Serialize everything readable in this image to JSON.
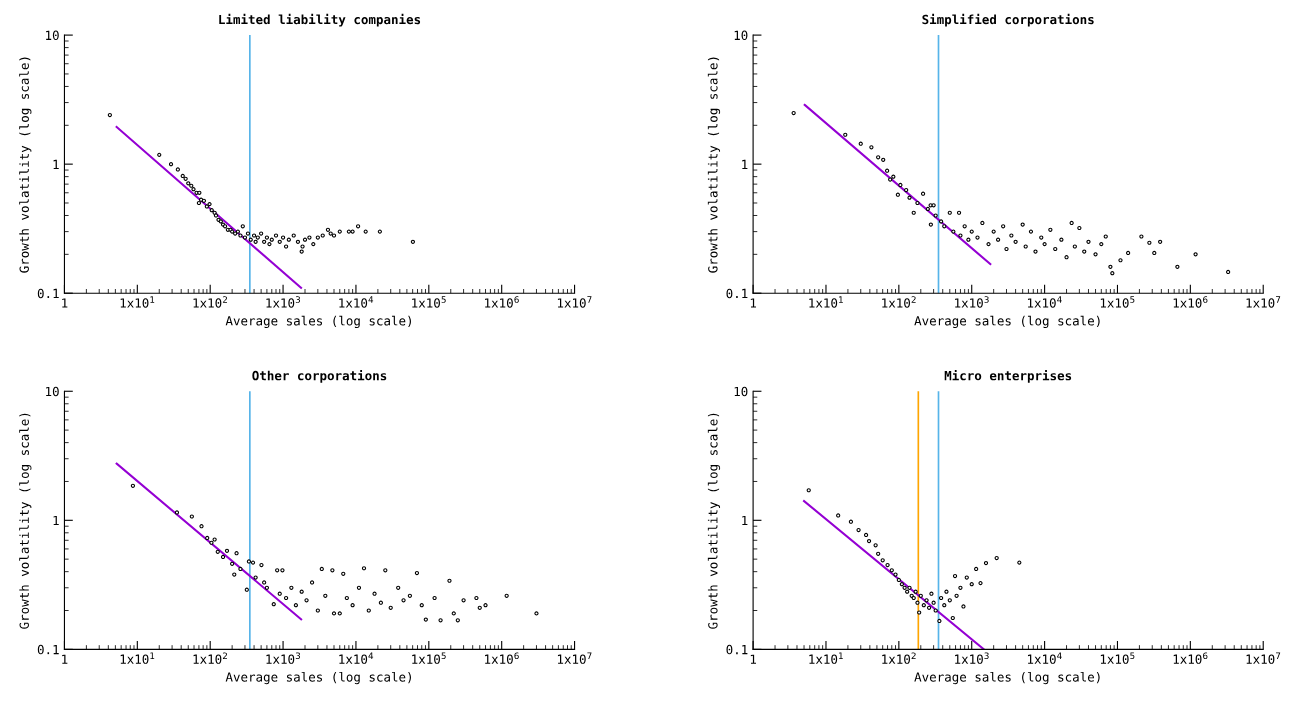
{
  "chart_data": [
    {
      "type": "scatter",
      "title": "Limited liability companies",
      "xlabel": "Average sales (log scale)",
      "ylabel": "Growth volatility (log scale)",
      "log": "xy",
      "grid": false,
      "xlim": [
        1,
        10000000
      ],
      "ylim": [
        0.1,
        10
      ],
      "xticks": [
        1,
        {
          "value": 10,
          "label": "1x10$^{1}$"
        },
        {
          "value": 100,
          "label": "1x10$^{2}$"
        },
        {
          "value": 1000,
          "label": "1x10$^{3}$"
        },
        {
          "value": 10000,
          "label": "1x10$^{4}$"
        },
        {
          "value": 100000,
          "label": "1x10$^{5}$"
        },
        {
          "value": 1000000,
          "label": "1x10$^{6}$"
        },
        {
          "value": 10000000,
          "label": "1x10$^{7}$"
        }
      ],
      "yticks": [
        0.1,
        1,
        10
      ],
      "ref_lines": [
        {
          "axis": "x",
          "value": 350,
          "color": "#56b4e9"
        }
      ],
      "series": [
        {
          "marker": "circle",
          "color": "#000000",
          "x": [
            4.2,
            20,
            29,
            36,
            42,
            46,
            50,
            55,
            59,
            65,
            71,
            70,
            75,
            82,
            90,
            98,
            105,
            115,
            120,
            130,
            140,
            150,
            160,
            175,
            190,
            200,
            220,
            240,
            260,
            280,
            300,
            330,
            360,
            400,
            420,
            450,
            500,
            550,
            600,
            650,
            700,
            800,
            900,
            1000,
            1100,
            1200,
            1400,
            1600,
            1800,
            1850,
            2000,
            2300,
            2600,
            3000,
            3500,
            4130,
            4500,
            5000,
            6000,
            8000,
            9000,
            10700,
            13600,
            21300,
            60500
          ],
          "values": [
            2.4,
            1.18,
            1.0,
            0.91,
            0.81,
            0.77,
            0.71,
            0.68,
            0.64,
            0.6,
            0.6,
            0.5,
            0.53,
            0.52,
            0.47,
            0.49,
            0.44,
            0.42,
            0.4,
            0.37,
            0.36,
            0.34,
            0.33,
            0.31,
            0.31,
            0.3,
            0.29,
            0.3,
            0.28,
            0.33,
            0.27,
            0.29,
            0.26,
            0.28,
            0.25,
            0.27,
            0.29,
            0.25,
            0.27,
            0.24,
            0.26,
            0.28,
            0.25,
            0.27,
            0.23,
            0.26,
            0.28,
            0.25,
            0.21,
            0.23,
            0.26,
            0.27,
            0.24,
            0.27,
            0.28,
            0.31,
            0.29,
            0.28,
            0.3,
            0.3,
            0.3,
            0.33,
            0.3,
            0.3,
            0.25
          ]
        },
        {
          "type": "line",
          "color": "#9400d3",
          "line_style": "solid",
          "x": [
            5.2,
            1766
          ],
          "values": [
            1.94,
            0.11
          ]
        }
      ]
    },
    {
      "type": "scatter",
      "title": "Simplified corporations",
      "xlabel": "Average sales (log scale)",
      "ylabel": "Growth volatility (log scale)",
      "log": "xy",
      "grid": false,
      "xlim": [
        1,
        10000000
      ],
      "ylim": [
        0.1,
        10
      ],
      "xticks": [
        1,
        {
          "value": 10,
          "label": "1x10$^{1}$"
        },
        {
          "value": 100,
          "label": "1x10$^{2}$"
        },
        {
          "value": 1000,
          "label": "1x10$^{3}$"
        },
        {
          "value": 10000,
          "label": "1x10$^{4}$"
        },
        {
          "value": 100000,
          "label": "1x10$^{5}$"
        },
        {
          "value": 1000000,
          "label": "1x10$^{6}$"
        },
        {
          "value": 10000000,
          "label": "1x10$^{7}$"
        }
      ],
      "yticks": [
        0.1,
        1,
        10
      ],
      "ref_lines": [
        {
          "axis": "x",
          "value": 350,
          "color": "#56b4e9"
        }
      ],
      "series": [
        {
          "marker": "circle",
          "color": "#000000",
          "x": [
            3.6,
            18.4,
            30,
            42,
            52,
            61,
            69,
            76,
            84,
            97,
            105,
            126,
            140,
            160,
            180,
            215,
            250,
            273,
            275,
            300,
            320,
            380,
            420,
            500,
            560,
            670,
            700,
            800,
            900,
            1000,
            1200,
            1400,
            1700,
            2000,
            2300,
            2700,
            3000,
            3500,
            4000,
            5000,
            5500,
            6500,
            7500,
            9000,
            10000,
            12000,
            14000,
            17000,
            20000,
            23500,
            26000,
            30000,
            35000,
            40000,
            50000,
            60000,
            69000,
            80000,
            85000,
            110000,
            140000,
            213000,
            274000,
            320000,
            385000,
            664000,
            1180000,
            3300000
          ],
          "values": [
            2.49,
            1.69,
            1.44,
            1.35,
            1.13,
            1.08,
            0.89,
            0.76,
            0.8,
            0.58,
            0.69,
            0.63,
            0.55,
            0.42,
            0.5,
            0.59,
            0.45,
            0.48,
            0.34,
            0.48,
            0.4,
            0.36,
            0.33,
            0.42,
            0.3,
            0.42,
            0.28,
            0.33,
            0.26,
            0.3,
            0.27,
            0.35,
            0.24,
            0.3,
            0.26,
            0.33,
            0.22,
            0.28,
            0.25,
            0.34,
            0.23,
            0.3,
            0.21,
            0.27,
            0.24,
            0.31,
            0.22,
            0.26,
            0.19,
            0.35,
            0.23,
            0.32,
            0.21,
            0.25,
            0.2,
            0.24,
            0.275,
            0.16,
            0.143,
            0.18,
            0.205,
            0.275,
            0.246,
            0.205,
            0.25,
            0.16,
            0.2,
            0.146
          ]
        },
        {
          "type": "line",
          "color": "#9400d3",
          "line_style": "solid",
          "x": [
            5.1,
            1800
          ],
          "values": [
            2.88,
            0.168
          ]
        }
      ]
    },
    {
      "type": "scatter",
      "title": "Other corporations",
      "xlabel": "Average sales (log scale)",
      "ylabel": "Growth volatility (log scale)",
      "log": "xy",
      "grid": false,
      "xlim": [
        1,
        10000000
      ],
      "ylim": [
        0.1,
        10
      ],
      "xticks": [
        1,
        {
          "value": 10,
          "label": "1x10$^{1}$"
        },
        {
          "value": 100,
          "label": "1x10$^{2}$"
        },
        {
          "value": 1000,
          "label": "1x10$^{3}$"
        },
        {
          "value": 10000,
          "label": "1x10$^{4}$"
        },
        {
          "value": 100000,
          "label": "1x10$^{5}$"
        },
        {
          "value": 1000000,
          "label": "1x10$^{6}$"
        },
        {
          "value": 10000000,
          "label": "1x10$^{7}$"
        }
      ],
      "yticks": [
        0.1,
        1,
        10
      ],
      "ref_lines": [
        {
          "axis": "x",
          "value": 350,
          "color": "#56b4e9"
        }
      ],
      "series": [
        {
          "marker": "circle",
          "color": "#000000",
          "x": [
            8.7,
            35,
            56,
            76,
            91,
            104,
            115,
            127,
            150,
            170,
            200,
            214,
            230,
            260,
            318,
            340,
            387,
            420,
            505,
            550,
            600,
            745,
            830,
            900,
            980,
            1100,
            1300,
            1500,
            1800,
            2100,
            2500,
            3000,
            3400,
            3800,
            4750,
            5000,
            6000,
            6700,
            7500,
            9000,
            11000,
            12900,
            15000,
            18000,
            22000,
            25300,
            30000,
            38000,
            45000,
            55000,
            68700,
            80000,
            91000,
            120000,
            145000,
            192000,
            220000,
            250000,
            300000,
            450000,
            500000,
            600000,
            1170000,
            3000000
          ],
          "values": [
            1.85,
            1.15,
            1.07,
            0.9,
            0.73,
            0.67,
            0.71,
            0.57,
            0.52,
            0.58,
            0.46,
            0.38,
            0.556,
            0.42,
            0.29,
            0.48,
            0.47,
            0.36,
            0.45,
            0.33,
            0.3,
            0.224,
            0.41,
            0.27,
            0.41,
            0.25,
            0.3,
            0.22,
            0.28,
            0.24,
            0.33,
            0.2,
            0.42,
            0.26,
            0.41,
            0.19,
            0.19,
            0.385,
            0.25,
            0.22,
            0.3,
            0.425,
            0.2,
            0.27,
            0.23,
            0.41,
            0.21,
            0.3,
            0.24,
            0.26,
            0.39,
            0.22,
            0.17,
            0.25,
            0.168,
            0.34,
            0.19,
            0.168,
            0.24,
            0.25,
            0.21,
            0.22,
            0.26,
            0.19
          ]
        },
        {
          "type": "line",
          "color": "#9400d3",
          "line_style": "solid",
          "x": [
            5.2,
            1770
          ],
          "values": [
            2.75,
            0.171
          ]
        }
      ]
    },
    {
      "type": "scatter",
      "title": "Micro enterprises",
      "xlabel": "Average sales (log scale)",
      "ylabel": "Growth volatility (log scale)",
      "log": "xy",
      "grid": false,
      "xlim": [
        1,
        10000000
      ],
      "ylim": [
        0.1,
        10
      ],
      "xticks": [
        1,
        {
          "value": 10,
          "label": "1x10$^{1}$"
        },
        {
          "value": 100,
          "label": "1x10$^{2}$"
        },
        {
          "value": 1000,
          "label": "1x10$^{3}$"
        },
        {
          "value": 10000,
          "label": "1x10$^{4}$"
        },
        {
          "value": 100000,
          "label": "1x10$^{5}$"
        },
        {
          "value": 1000000,
          "label": "1x10$^{6}$"
        },
        {
          "value": 10000000,
          "label": "1x10$^{7}$"
        }
      ],
      "yticks": [
        0.1,
        1,
        10
      ],
      "ref_lines": [
        {
          "axis": "x",
          "value": 185,
          "color": "#ffa500"
        },
        {
          "axis": "x",
          "value": 350,
          "color": "#56b4e9"
        }
      ],
      "series": [
        {
          "marker": "circle",
          "color": "#000000",
          "x": [
            5.8,
            14.7,
            22,
            28,
            35.5,
            39,
            48,
            52,
            60,
            70,
            80,
            90,
            100,
            110,
            120,
            130,
            140,
            150,
            160,
            170,
            180,
            190,
            200,
            220,
            240,
            260,
            280,
            300,
            320,
            360,
            380,
            420,
            450,
            500,
            550,
            590,
            620,
            700,
            770,
            855,
            1000,
            1150,
            1320,
            1570,
            2200,
            4500
          ],
          "values": [
            1.71,
            1.09,
            0.975,
            0.84,
            0.77,
            0.69,
            0.64,
            0.55,
            0.49,
            0.45,
            0.41,
            0.38,
            0.345,
            0.32,
            0.3,
            0.28,
            0.3,
            0.26,
            0.25,
            0.28,
            0.23,
            0.193,
            0.26,
            0.22,
            0.24,
            0.21,
            0.27,
            0.23,
            0.2,
            0.166,
            0.25,
            0.22,
            0.28,
            0.24,
            0.175,
            0.37,
            0.26,
            0.3,
            0.215,
            0.36,
            0.32,
            0.42,
            0.326,
            0.466,
            0.51,
            0.47
          ]
        },
        {
          "type": "line",
          "color": "#9400d3",
          "line_style": "solid",
          "x": [
            5.0,
            1470
          ],
          "values": [
            1.41,
            0.1
          ]
        }
      ]
    }
  ]
}
